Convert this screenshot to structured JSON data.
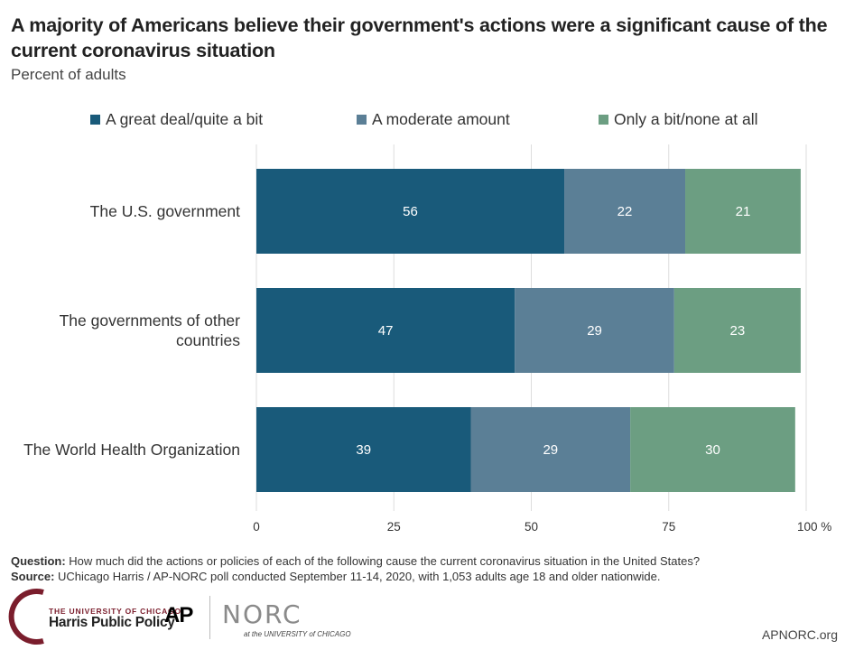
{
  "title": "A majority of Americans believe their government's actions were a significant cause of the current coronavirus situation",
  "subtitle": "Percent of adults",
  "colors": {
    "great_deal": "#195a7a",
    "moderate": "#5b7f96",
    "little": "#6c9e82",
    "grid": "#dddddd",
    "axis_text": "#333333",
    "label_text": "#333333",
    "bar_text": "#ffffff"
  },
  "chart_data": {
    "type": "bar",
    "orientation": "horizontal",
    "stacked": true,
    "categories": [
      "The U.S. government",
      "The governments of other countries",
      "The World Health Organization"
    ],
    "category_lines": [
      [
        "The U.S. government"
      ],
      [
        "The governments of other",
        "countries"
      ],
      [
        "The World Health Organization"
      ]
    ],
    "series": [
      {
        "name": "A great deal/quite a bit",
        "values": [
          56,
          47,
          39
        ]
      },
      {
        "name": "A moderate amount",
        "values": [
          22,
          29,
          29
        ]
      },
      {
        "name": "Only a bit/none at all",
        "values": [
          21,
          23,
          30
        ]
      }
    ],
    "xlim": [
      0,
      100
    ],
    "xticks": [
      0,
      25,
      50,
      75,
      100
    ],
    "xtick_labels": [
      "0",
      "25",
      "50",
      "75",
      "100 %"
    ],
    "grid": true,
    "legend": "top"
  },
  "footer": {
    "question_label": "Question:",
    "question_text": " How much did the actions or policies of each of the following cause the current coronavirus situation in the United States?",
    "source_label": "Source:",
    "source_text": " UChicago Harris / AP-NORC poll conducted September 11-14, 2020, with 1,053 adults age 18 and older nationwide."
  },
  "logos": {
    "harris_line1": "THE UNIVERSITY OF CHICAGO",
    "harris_line2": "Harris Public Policy",
    "ap": "AP",
    "norc": "NORC",
    "norc_sub": "at the UNIVERSITY of CHICAGO",
    "site": "APNORC.org"
  }
}
